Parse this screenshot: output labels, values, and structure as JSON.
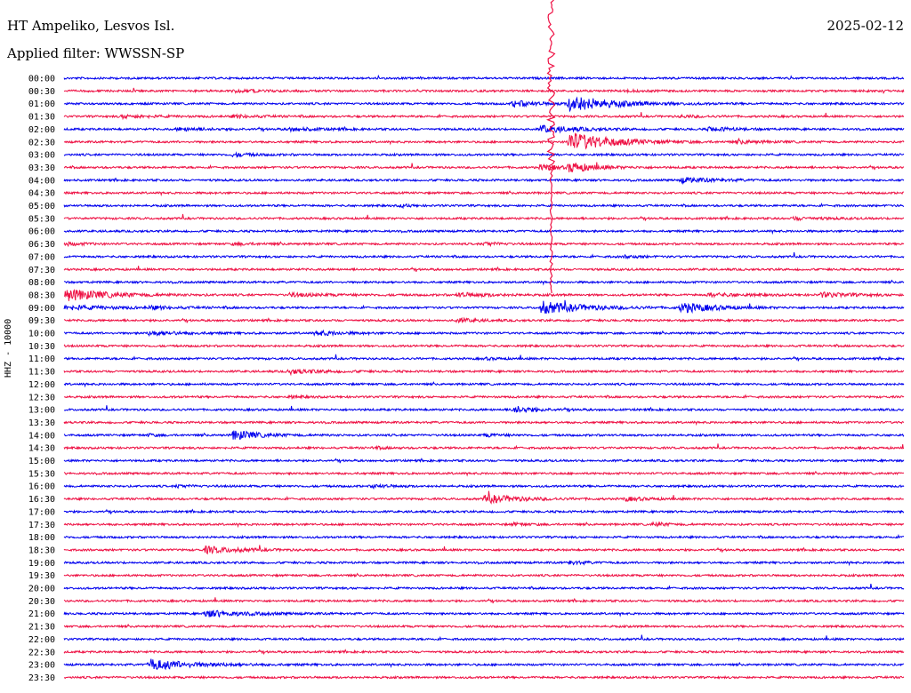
{
  "header": {
    "station": "HT Ampeliko, Lesvos Isl.",
    "date": "2025-02-12",
    "filter": "Applied filter: WWSSN-SP"
  },
  "channel_label": "HHZ - 10000",
  "colors": {
    "blue": "#0000ee",
    "red": "#ee1144",
    "background": "#ffffff"
  },
  "chart_data": {
    "type": "line",
    "title": "HT Ampeliko, Lesvos Isl.",
    "xlabel": "",
    "ylabel": "HHZ - 10000",
    "rows": [
      "00:00",
      "00:30",
      "01:00",
      "01:30",
      "02:00",
      "02:30",
      "03:00",
      "03:30",
      "04:00",
      "04:30",
      "05:00",
      "05:30",
      "06:00",
      "06:30",
      "07:00",
      "07:30",
      "08:00",
      "08:30",
      "09:00",
      "09:30",
      "10:00",
      "10:30",
      "11:00",
      "11:30",
      "12:00",
      "12:30",
      "13:00",
      "13:30",
      "14:00",
      "14:30",
      "15:00",
      "15:30",
      "16:00",
      "16:30",
      "17:00",
      "17:30",
      "18:00",
      "18:30",
      "19:00",
      "19:30",
      "20:00",
      "20:30",
      "21:00",
      "21:30",
      "22:00",
      "22:30",
      "23:00",
      "23:30"
    ],
    "row_colors": [
      "blue",
      "red"
    ],
    "events": [
      {
        "row": "00:30",
        "minute": 6,
        "amp": 0.4,
        "dur": 2
      },
      {
        "row": "00:30",
        "minute": 20,
        "amp": 0.3,
        "dur": 1
      },
      {
        "row": "01:00",
        "minute": 16,
        "amp": 1.1,
        "dur": 1.5
      },
      {
        "row": "01:00",
        "minute": 18,
        "amp": 3.0,
        "dur": 2.5
      },
      {
        "row": "01:30",
        "minute": 2,
        "amp": 0.5,
        "dur": 2
      },
      {
        "row": "01:30",
        "minute": 6,
        "amp": 0.5,
        "dur": 1.5
      },
      {
        "row": "01:30",
        "minute": 22,
        "amp": 0.4,
        "dur": 1.2
      },
      {
        "row": "02:00",
        "minute": 4,
        "amp": 0.5,
        "dur": 2
      },
      {
        "row": "02:00",
        "minute": 8,
        "amp": 0.6,
        "dur": 1.8
      },
      {
        "row": "02:00",
        "minute": 17,
        "amp": 1.3,
        "dur": 2
      },
      {
        "row": "02:00",
        "minute": 23,
        "amp": 0.7,
        "dur": 1.5
      },
      {
        "row": "02:30",
        "minute": 18,
        "amp": 3.5,
        "dur": 2.5
      },
      {
        "row": "02:30",
        "minute": 24,
        "amp": 0.6,
        "dur": 1.5
      },
      {
        "row": "03:00",
        "minute": 6,
        "amp": 0.6,
        "dur": 1.2
      },
      {
        "row": "03:30",
        "minute": 17,
        "amp": 1.2,
        "dur": 1
      },
      {
        "row": "03:30",
        "minute": 18,
        "amp": 2.0,
        "dur": 1.5
      },
      {
        "row": "04:00",
        "minute": 22,
        "amp": 0.9,
        "dur": 2
      },
      {
        "row": "05:00",
        "minute": 12,
        "amp": 0.6,
        "dur": 0.5
      },
      {
        "row": "05:30",
        "minute": 26,
        "amp": 0.4,
        "dur": 2
      },
      {
        "row": "06:30",
        "minute": 0,
        "amp": 0.5,
        "dur": 1.2
      },
      {
        "row": "06:30",
        "minute": 6,
        "amp": 0.3,
        "dur": 2
      },
      {
        "row": "06:30",
        "minute": 15,
        "amp": 0.7,
        "dur": 0.8
      },
      {
        "row": "07:00",
        "minute": 20,
        "amp": 0.5,
        "dur": 0.8
      },
      {
        "row": "08:30",
        "minute": 0,
        "amp": 2.2,
        "dur": 2.5
      },
      {
        "row": "08:30",
        "minute": 8,
        "amp": 0.5,
        "dur": 2.5
      },
      {
        "row": "08:30",
        "minute": 14,
        "amp": 0.7,
        "dur": 2
      },
      {
        "row": "08:30",
        "minute": 23,
        "amp": 0.6,
        "dur": 2
      },
      {
        "row": "08:30",
        "minute": 27,
        "amp": 0.8,
        "dur": 2
      },
      {
        "row": "09:00",
        "minute": 0,
        "amp": 0.7,
        "dur": 3
      },
      {
        "row": "09:00",
        "minute": 3,
        "amp": 0.5,
        "dur": 2
      },
      {
        "row": "09:00",
        "minute": 17,
        "amp": 2.2,
        "dur": 2.5
      },
      {
        "row": "09:00",
        "minute": 22,
        "amp": 1.8,
        "dur": 2
      },
      {
        "row": "09:30",
        "minute": 14,
        "amp": 0.7,
        "dur": 1.2
      },
      {
        "row": "10:00",
        "minute": 3,
        "amp": 0.7,
        "dur": 2
      },
      {
        "row": "10:00",
        "minute": 9,
        "amp": 0.8,
        "dur": 1.5
      },
      {
        "row": "11:00",
        "minute": 15,
        "amp": 0.3,
        "dur": 1
      },
      {
        "row": "11:30",
        "minute": 8,
        "amp": 0.8,
        "dur": 2
      },
      {
        "row": "12:30",
        "minute": 8,
        "amp": 0.3,
        "dur": 1
      },
      {
        "row": "13:00",
        "minute": 16,
        "amp": 1.4,
        "dur": 1.2
      },
      {
        "row": "14:00",
        "minute": 3,
        "amp": 0.5,
        "dur": 0.5
      },
      {
        "row": "14:00",
        "minute": 6,
        "amp": 1.8,
        "dur": 1.5
      },
      {
        "row": "14:00",
        "minute": 15,
        "amp": 0.5,
        "dur": 1
      },
      {
        "row": "14:30",
        "minute": 11,
        "amp": 0.3,
        "dur": 1
      },
      {
        "row": "16:00",
        "minute": 4,
        "amp": 0.5,
        "dur": 0.8
      },
      {
        "row": "16:00",
        "minute": 11,
        "amp": 0.6,
        "dur": 1
      },
      {
        "row": "16:30",
        "minute": 15,
        "amp": 1.5,
        "dur": 2
      },
      {
        "row": "16:30",
        "minute": 20,
        "amp": 0.6,
        "dur": 1.5
      },
      {
        "row": "17:30",
        "minute": 16,
        "amp": 0.5,
        "dur": 0.8
      },
      {
        "row": "17:30",
        "minute": 21,
        "amp": 0.7,
        "dur": 0.8
      },
      {
        "row": "18:30",
        "minute": 5,
        "amp": 1.2,
        "dur": 2
      },
      {
        "row": "19:00",
        "minute": 18,
        "amp": 0.6,
        "dur": 1
      },
      {
        "row": "21:00",
        "minute": 5,
        "amp": 1.1,
        "dur": 2.5
      },
      {
        "row": "23:00",
        "minute": 3,
        "amp": 2.0,
        "dur": 2.5
      }
    ],
    "teleseism": {
      "row": "00:30",
      "minute": 17.4,
      "amp": 7.0,
      "dur": 3
    }
  }
}
